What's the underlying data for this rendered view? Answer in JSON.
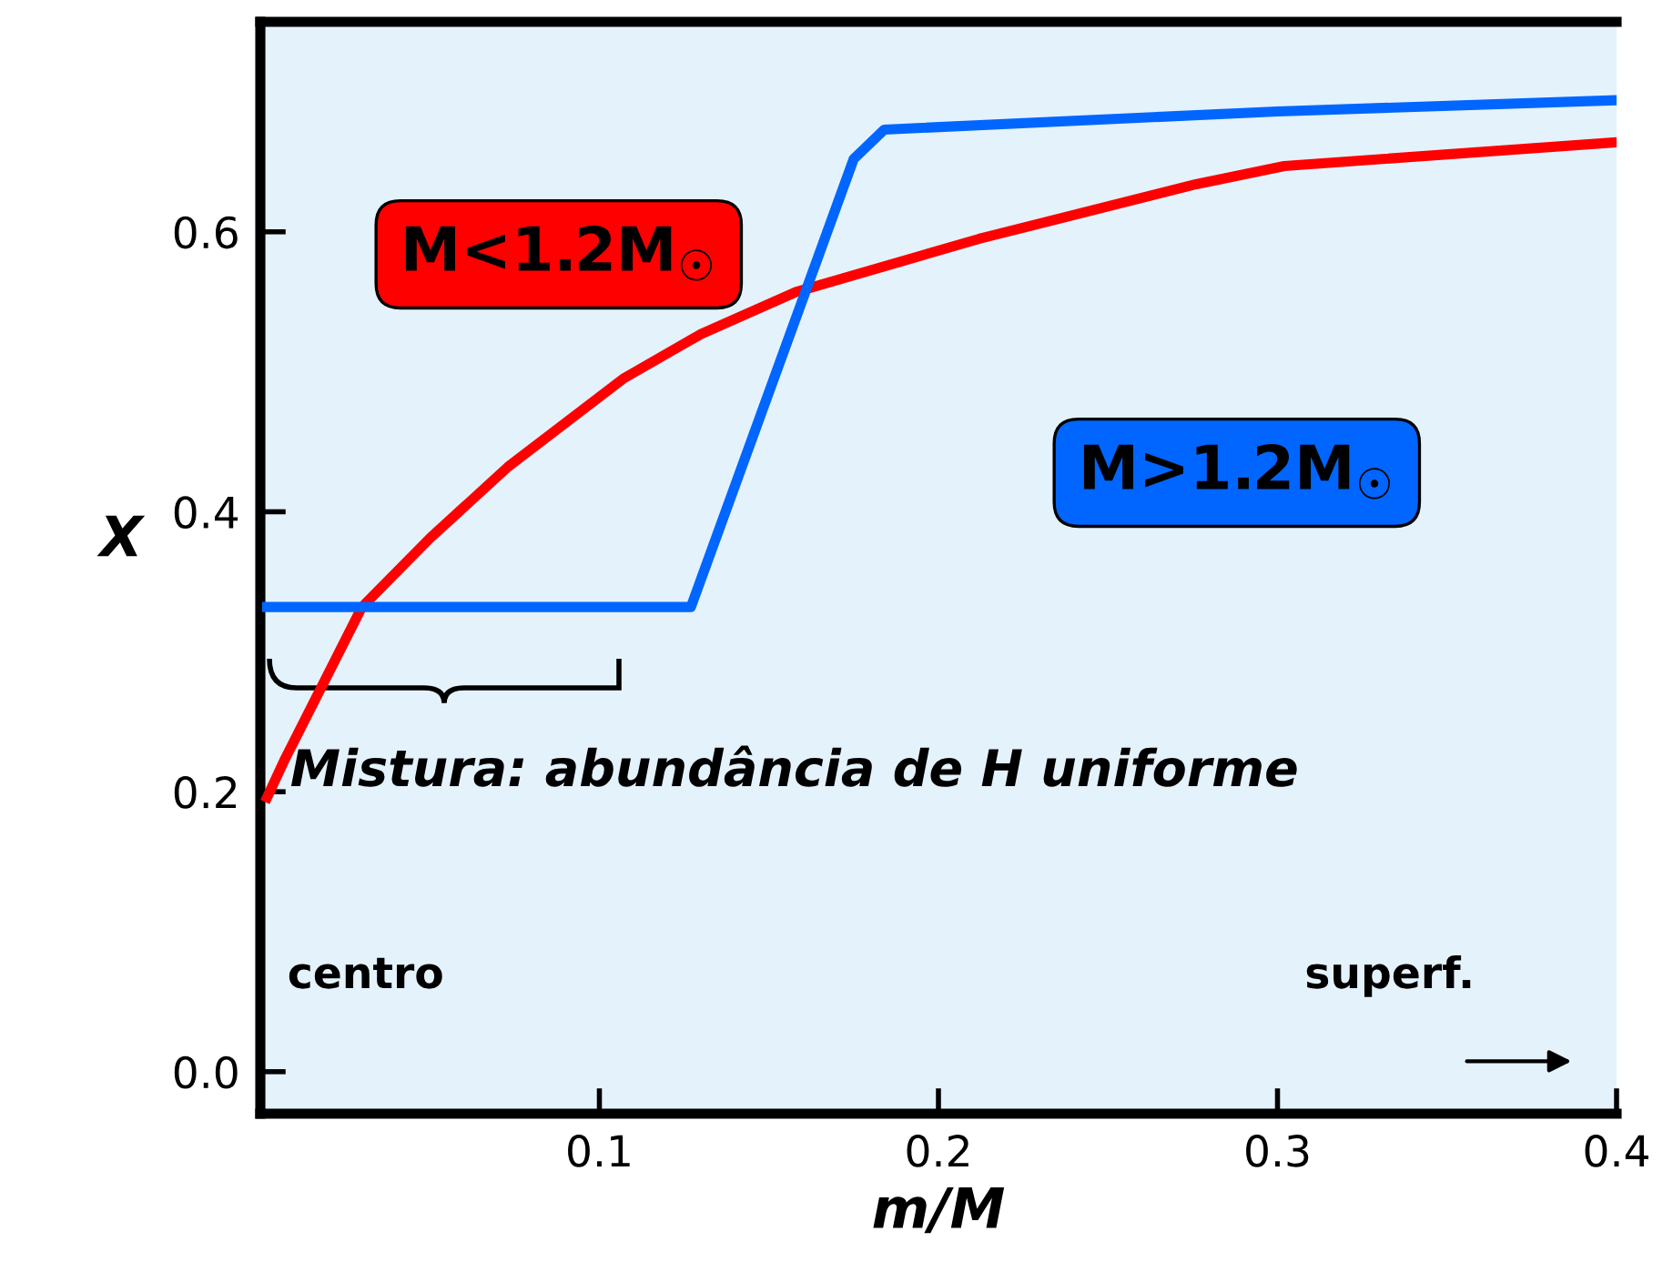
{
  "chart_data": {
    "type": "line",
    "xlabel": "m/M",
    "ylabel": "X",
    "xlim": [
      0,
      0.4
    ],
    "xticks": [
      0.1,
      0.2,
      0.3,
      0.4
    ],
    "ylim": [
      -0.03,
      0.75
    ],
    "yticks": [
      {
        "value": 0,
        "label": "0.0"
      },
      0.2,
      0.4,
      0.6
    ],
    "series": [
      {
        "name": "M<1.2M$_{☉}$",
        "color": "#ff0000",
        "x": [
          0.002,
          0.007,
          0.03,
          0.05,
          0.073,
          0.107,
          0.13,
          0.158,
          0.212,
          0.276,
          0.302,
          0.4
        ],
        "values": [
          0.196,
          0.222,
          0.332,
          0.381,
          0.432,
          0.495,
          0.527,
          0.557,
          0.595,
          0.634,
          0.647,
          0.664
        ]
      },
      {
        "name": "M>1.2M$_{☉}$",
        "color": "#0066ff",
        "x": [
          0.002,
          0.127,
          0.175,
          0.184,
          0.3,
          0.4
        ],
        "values": [
          0.332,
          0.332,
          0.652,
          0.673,
          0.686,
          0.694
        ]
      }
    ],
    "annotations": [
      "Mistura: abundância de H uniforme",
      "centro",
      "superf."
    ],
    "legend": false,
    "grid": false
  }
}
